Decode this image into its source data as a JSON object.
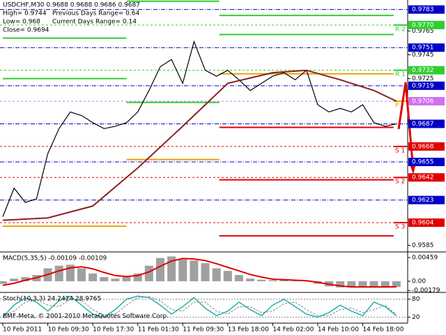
{
  "chart_data": [
    {
      "type": "line",
      "info": [
        "USDCHF,M30 0.9688 0.9688 0.9686 0.9687",
        "High= 0.9744",
        "Previous Days Range= 0.64",
        "Low= 0.968",
        "Current Days Range= 0.14",
        "Close= 0.9694"
      ],
      "copyright": "BMF-Meta, © 2001-2010 MetaQuotes Software Corp.",
      "xlim": [
        -1,
        144
      ],
      "xticks": [
        {
          "value": 0,
          "label": "10 Feb 2011"
        },
        {
          "value": 16,
          "label": "10 Feb 09:30"
        },
        {
          "value": 32,
          "label": "10 Feb 17:30"
        },
        {
          "value": 48,
          "label": "11 Feb 01:30"
        },
        {
          "value": 64,
          "label": "11 Feb 09:30"
        },
        {
          "value": 80,
          "label": "13 Feb 18:00"
        },
        {
          "value": 96,
          "label": "14 Feb 02:00"
        },
        {
          "value": 112,
          "label": "14 Feb 10:00"
        },
        {
          "value": 128,
          "label": "14 Feb 18:00"
        }
      ],
      "ylim": [
        0.958,
        0.9791
      ],
      "yticks": [
        0.9765,
        0.9745,
        0.9725,
        0.9585
      ],
      "levels": [
        {
          "value": 0.9783,
          "color": "#0000c8"
        },
        {
          "value": {
            "value": 0.977,
            "label": "0.9770"
          },
          "color": "#32cd32"
        },
        {
          "value": 0.9751,
          "color": "#0000c8"
        },
        {
          "value": 0.9732,
          "color": "#32cd32"
        },
        {
          "value": 0.9719,
          "color": "#0000c8"
        },
        {
          "value": 0.9706,
          "color": "#d070f0"
        },
        {
          "value": 0.9687,
          "color": "#0000c8"
        },
        {
          "value": 0.9668,
          "color": "#e00000"
        },
        {
          "value": 0.9655,
          "color": "#0000c8"
        },
        {
          "value": 0.9642,
          "color": "#e00000"
        },
        {
          "value": 0.9623,
          "color": "#0000c8"
        },
        {
          "value": 0.9604,
          "color": "#e00000"
        }
      ],
      "day_starts": [
        0,
        44,
        77,
        139
      ],
      "pivots": [
        {
          "name": "R 2",
          "color": "#32cd32",
          "values": [
            0.9759,
            0.979,
            0.9778,
            0.977
          ]
        },
        {
          "name": "R 1",
          "color": "#32cd32",
          "values": [
            0.9725,
            0.9705,
            0.9762,
            0.9732
          ]
        },
        {
          "name": "P",
          "color": "#f0a000",
          "values": [
            0.9601,
            0.9657,
            0.9729,
            0.9706
          ]
        },
        {
          "name": "S 1",
          "color": "#e00000",
          "values": [
            null,
            null,
            0.9684,
            0.9668
          ]
        },
        {
          "name": "S 2",
          "color": "#e00000",
          "values": [
            null,
            null,
            0.964,
            0.9642
          ]
        },
        {
          "name": "S 3",
          "color": "#e00000",
          "values": [
            null,
            null,
            0.9593,
            0.9604
          ]
        }
      ],
      "series": [
        {
          "color": "#000000",
          "x": [
            0,
            4,
            8,
            12,
            16,
            20,
            24,
            28,
            32,
            36,
            40,
            44,
            48,
            52,
            56,
            60,
            64,
            68,
            72,
            76,
            80,
            84,
            88,
            92,
            96,
            100,
            104,
            108,
            112,
            116,
            120,
            124,
            128,
            132,
            136,
            140
          ],
          "values": [
            0.9609,
            0.9633,
            0.9621,
            0.9624,
            0.9662,
            0.9683,
            0.9697,
            0.9694,
            0.9688,
            0.9683,
            0.9685,
            0.9688,
            0.9697,
            0.9715,
            0.9735,
            0.9741,
            0.9721,
            0.9756,
            0.9732,
            0.9727,
            0.9732,
            0.9724,
            0.9715,
            0.9721,
            0.9727,
            0.973,
            0.9724,
            0.9732,
            0.9703,
            0.9697,
            0.97,
            0.9697,
            0.9703,
            0.9688,
            0.9685,
            0.9687
          ]
        },
        {
          "color": "#8b2020",
          "x": [
            0,
            16,
            32,
            48,
            64,
            72,
            80,
            96,
            108,
            120,
            132,
            140
          ],
          "values": [
            0.9606,
            0.9608,
            0.9618,
            0.965,
            0.9685,
            0.9703,
            0.9721,
            0.973,
            0.9732,
            0.9724,
            0.9715,
            0.9706
          ]
        }
      ]
    },
    {
      "type": "bar",
      "title": "MACD(5,35,5) -0.00109 -0.00109",
      "ylim": [
        -0.00203,
        0.00553
      ],
      "yticks": [
        0.00459,
        {
          "value": 0,
          "label": "0.00"
        },
        -0.00179
      ],
      "x": [
        0,
        4,
        8,
        12,
        16,
        20,
        24,
        28,
        32,
        36,
        40,
        44,
        48,
        52,
        56,
        60,
        64,
        68,
        72,
        76,
        80,
        84,
        88,
        92,
        96,
        100,
        104,
        108,
        112,
        116,
        120,
        124,
        128,
        132,
        136,
        140
      ],
      "series": [
        {
          "color": "#a0a0a0",
          "values": [
            -0.0005,
            0.0005,
            0.0008,
            0.0012,
            0.0025,
            0.003,
            0.0032,
            0.0025,
            0.0015,
            0.0008,
            0.0005,
            0.0008,
            0.0015,
            0.003,
            0.0045,
            0.0048,
            0.0042,
            0.004,
            0.0035,
            0.0025,
            0.002,
            0.0012,
            0.0005,
            0.0003,
            0.0002,
            0.0002,
            0.0001,
            0.0001,
            -0.0005,
            -0.001,
            -0.0012,
            -0.0012,
            -0.001,
            -0.0012,
            -0.0011,
            -0.00109
          ]
        },
        {
          "color": "#e00000",
          "values": [
            -0.0008,
            -0.0004,
            0.0002,
            0.0007,
            0.0013,
            0.002,
            0.0026,
            0.0028,
            0.0024,
            0.0017,
            0.0011,
            0.0009,
            0.0011,
            0.0018,
            0.0029,
            0.0039,
            0.0044,
            0.0043,
            0.004,
            0.0034,
            0.0027,
            0.002,
            0.0013,
            0.0008,
            0.0004,
            0.0003,
            0.0002,
            0.0001,
            -0.0002,
            -0.0006,
            -0.0009,
            -0.0011,
            -0.0011,
            -0.0011,
            -0.0011,
            -0.00109
          ]
        }
      ]
    },
    {
      "type": "line",
      "title": "Stoch(10,3,3) 24.2424 28.9765",
      "ylim": [
        0,
        100
      ],
      "yticks": [
        80,
        20
      ],
      "x": [
        0,
        4,
        8,
        12,
        16,
        20,
        24,
        28,
        32,
        36,
        40,
        44,
        48,
        52,
        56,
        60,
        64,
        68,
        72,
        76,
        80,
        84,
        88,
        92,
        96,
        100,
        104,
        108,
        112,
        116,
        120,
        124,
        128,
        132,
        136,
        140
      ],
      "series": [
        {
          "color": "#20b2aa",
          "values": [
            20,
            60,
            85,
            70,
            40,
            75,
            90,
            60,
            30,
            20,
            45,
            80,
            90,
            85,
            60,
            30,
            55,
            85,
            50,
            25,
            40,
            70,
            45,
            25,
            60,
            80,
            55,
            30,
            20,
            35,
            60,
            40,
            25,
            70,
            55,
            24.2424
          ]
        },
        {
          "color": "#808080",
          "values": [
            25,
            40,
            70,
            78,
            60,
            55,
            80,
            75,
            45,
            25,
            30,
            60,
            85,
            88,
            75,
            45,
            40,
            70,
            70,
            40,
            30,
            55,
            55,
            35,
            40,
            65,
            70,
            45,
            25,
            25,
            45,
            50,
            35,
            45,
            60,
            28.9765
          ]
        }
      ]
    }
  ]
}
